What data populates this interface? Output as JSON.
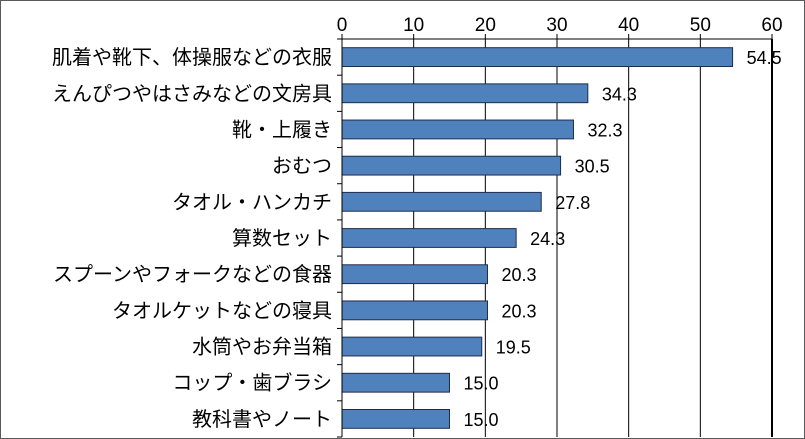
{
  "chart_data": {
    "type": "bar",
    "orientation": "horizontal",
    "categories": [
      "肌着や靴下、体操服などの衣服",
      "えんぴつやはさみなどの文房具",
      "靴・上履き",
      "おむつ",
      "タオル・ハンカチ",
      "算数セット",
      "スプーンやフォークなどの食器",
      "タオルケットなどの寝具",
      "水筒やお弁当箱",
      "コップ・歯ブラシ",
      "教科書やノート"
    ],
    "values": [
      54.5,
      34.3,
      32.3,
      30.5,
      27.8,
      24.3,
      20.3,
      20.3,
      19.5,
      15.0,
      15.0
    ],
    "value_labels": [
      "54.5",
      "34.3",
      "32.3",
      "30.5",
      "27.8",
      "24.3",
      "20.3",
      "20.3",
      "19.5",
      "15.0",
      "15.0"
    ],
    "xticks": [
      "0",
      "10",
      "20",
      "30",
      "40",
      "50",
      "60"
    ],
    "xlim": [
      0,
      60
    ],
    "x_axis_position": "top",
    "grid": true,
    "legend": "none",
    "bar_color": "#4f81bd",
    "bar_edge_color": "#1f2d4a"
  }
}
